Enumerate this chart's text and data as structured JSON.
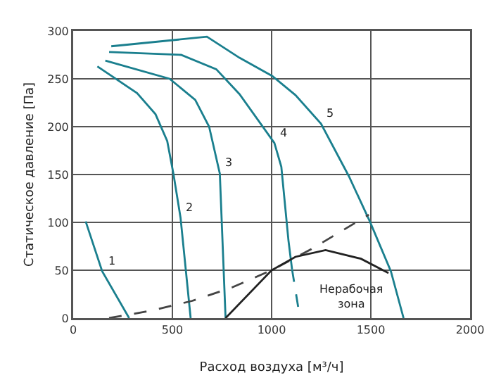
{
  "chart_data": {
    "type": "line",
    "xlabel": "Расход воздуха [м³/ч]",
    "ylabel": "Статическое давление [Па]",
    "xlim": [
      0,
      2000
    ],
    "xticks": [
      0,
      500,
      1000,
      1500,
      2000
    ],
    "ylim": [
      0,
      300
    ],
    "yticks": [
      0,
      50,
      100,
      150,
      200,
      250,
      300
    ],
    "grid": true,
    "marker": "none",
    "series": [
      {
        "color": "#1a7f8e",
        "x": [
          63,
          146,
          282
        ],
        "values": [
          101,
          49,
          0
        ]
      },
      {
        "color": "#1a7f8e",
        "x": [
          122,
          322,
          415,
          474,
          505,
          541,
          592
        ],
        "values": [
          263,
          235,
          213,
          185,
          151,
          105,
          0
        ]
      },
      {
        "color": "#1a7f8e",
        "x": [
          162,
          486,
          615,
          685,
          739,
          768
        ],
        "values": [
          269,
          250,
          228,
          200,
          151,
          0
        ]
      },
      {
        "color": "#1a7f8e",
        "x": [
          181,
          544,
          721,
          838,
          1014,
          1049,
          1085,
          1103
        ],
        "values": [
          278,
          275,
          260,
          234,
          183,
          158,
          81,
          51
        ]
      },
      {
        "color": "#1a7f8e",
        "x": [
          1103,
          1143
        ],
        "values": [
          51,
          0
        ],
        "line_style": "dashed"
      },
      {
        "color": "#1a7f8e",
        "x": [
          192,
          674,
          838,
          1003,
          1120,
          1249,
          1390,
          1495,
          1601,
          1665
        ],
        "values": [
          284,
          294,
          272,
          253,
          233,
          203,
          148,
          101,
          49,
          0
        ]
      },
      {
        "color": "#444444",
        "x": [
          181,
          400,
          600,
          800,
          1000,
          1200,
          1490
        ],
        "values": [
          0,
          8,
          18,
          32,
          50,
          72,
          108
        ],
        "line_style": "dashed"
      },
      {
        "color": "#222222",
        "x": [
          768,
          1000,
          1120,
          1272,
          1450,
          1589
        ],
        "values": [
          0,
          50,
          64,
          71,
          62,
          47
        ]
      }
    ],
    "annotations": [
      {
        "text": "1",
        "x": 146,
        "y": 49
      },
      {
        "text": "2",
        "x": 541,
        "y": 105
      },
      {
        "text": "3",
        "x": 739,
        "y": 151
      },
      {
        "text": "4",
        "x": 1014,
        "y": 183
      },
      {
        "text": "5",
        "x": 1249,
        "y": 203
      },
      "Нерабочая\nзона"
    ]
  }
}
